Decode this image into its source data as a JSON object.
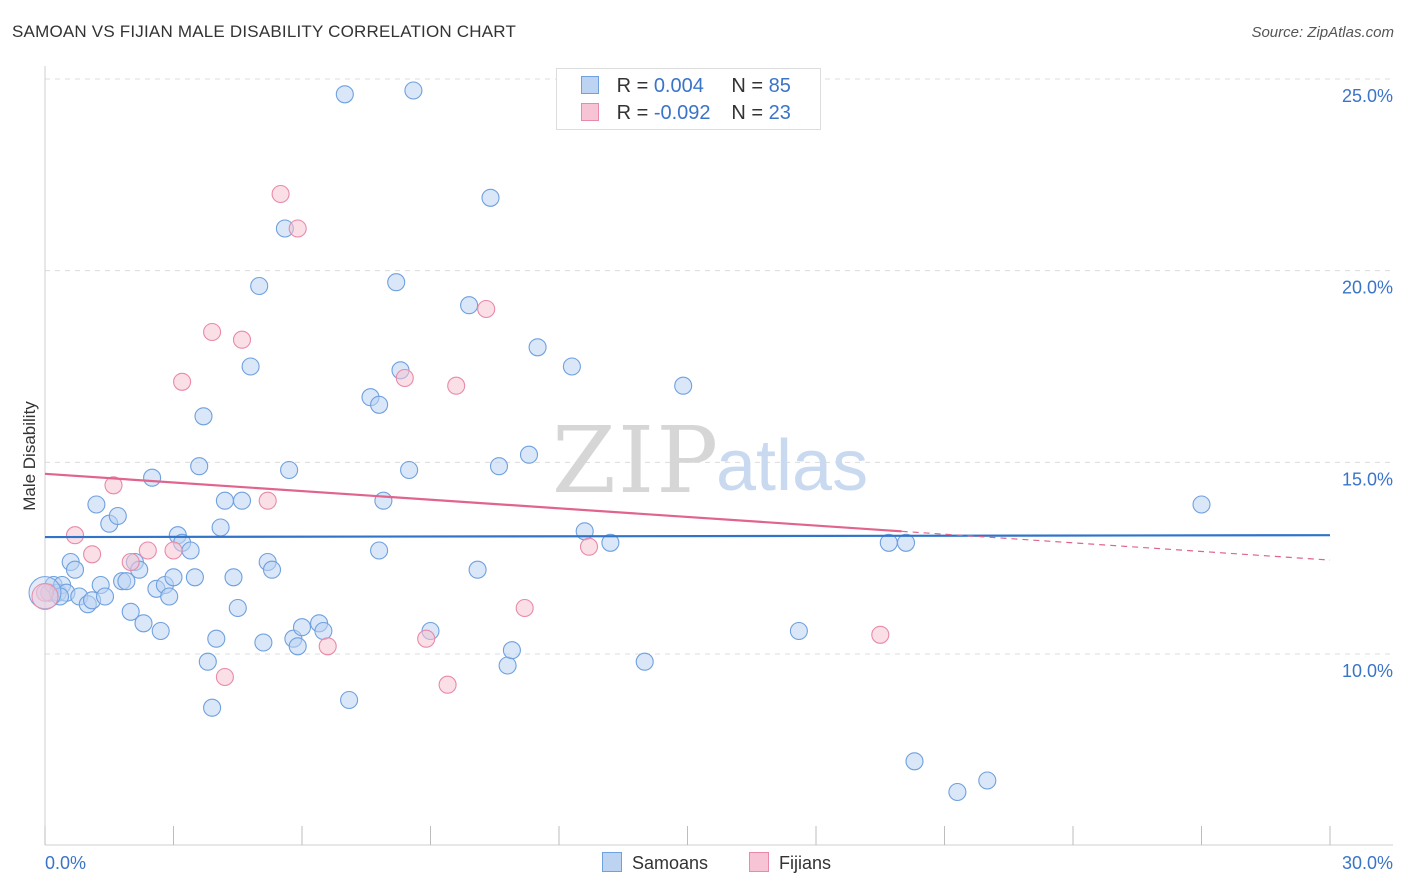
{
  "chart_data": {
    "type": "scatter",
    "title": "SAMOAN VS FIJIAN MALE DISABILITY CORRELATION CHART",
    "source": "Source: ZipAtlas.com",
    "xlabel": "",
    "ylabel": "Male Disability",
    "xlim": [
      0,
      30
    ],
    "ylim": [
      5.0,
      26.0
    ],
    "x_tick_labels": [
      "0.0%",
      "30.0%"
    ],
    "y_ticks": [
      10,
      15,
      20,
      25
    ],
    "y_tick_labels": [
      "10.0%",
      "15.0%",
      "20.0%",
      "25.0%"
    ],
    "watermark": {
      "zip": "ZIP",
      "atlas": "atlas"
    },
    "legend": {
      "rows": [
        {
          "r_label": "R = ",
          "r_value": "0.004",
          "n_label": "N = ",
          "n_value": "85"
        },
        {
          "r_label": "R = ",
          "r_value": "-0.092",
          "n_label": "N = ",
          "n_value": "23"
        }
      ]
    },
    "series": [
      {
        "name": "Samoans",
        "color": "#6fa0df",
        "fill": "#bcd3f2",
        "line_color": "#2f74c9",
        "trend": {
          "x": [
            0,
            30
          ],
          "y": [
            13.05,
            13.1
          ]
        },
        "points": [
          [
            0.1,
            11.6
          ],
          [
            0.2,
            11.8
          ],
          [
            0.3,
            11.6
          ],
          [
            0.4,
            11.8
          ],
          [
            0.5,
            11.6
          ],
          [
            0.6,
            12.4
          ],
          [
            0.7,
            12.2
          ],
          [
            0.8,
            11.5
          ],
          [
            1.0,
            11.3
          ],
          [
            1.1,
            11.4
          ],
          [
            1.2,
            13.9
          ],
          [
            1.3,
            11.8
          ],
          [
            1.4,
            11.5
          ],
          [
            1.5,
            13.4
          ],
          [
            1.7,
            13.6
          ],
          [
            1.8,
            11.9
          ],
          [
            1.9,
            11.9
          ],
          [
            2.0,
            11.1
          ],
          [
            2.1,
            12.4
          ],
          [
            2.2,
            12.2
          ],
          [
            2.3,
            10.8
          ],
          [
            2.5,
            14.6
          ],
          [
            2.6,
            11.7
          ],
          [
            2.7,
            10.6
          ],
          [
            2.8,
            11.8
          ],
          [
            2.9,
            11.5
          ],
          [
            3.0,
            12.0
          ],
          [
            3.1,
            13.1
          ],
          [
            3.2,
            12.9
          ],
          [
            3.4,
            12.7
          ],
          [
            3.5,
            12.0
          ],
          [
            3.6,
            14.9
          ],
          [
            3.7,
            16.2
          ],
          [
            3.8,
            9.8
          ],
          [
            3.9,
            8.6
          ],
          [
            4.0,
            10.4
          ],
          [
            4.1,
            13.3
          ],
          [
            4.2,
            14.0
          ],
          [
            4.4,
            12.0
          ],
          [
            4.5,
            11.2
          ],
          [
            4.6,
            14.0
          ],
          [
            4.8,
            17.5
          ],
          [
            5.0,
            19.6
          ],
          [
            5.1,
            10.3
          ],
          [
            5.2,
            12.4
          ],
          [
            5.3,
            12.2
          ],
          [
            5.7,
            14.8
          ],
          [
            5.8,
            10.4
          ],
          [
            5.9,
            10.2
          ],
          [
            5.6,
            21.1
          ],
          [
            6.0,
            10.7
          ],
          [
            6.4,
            10.8
          ],
          [
            6.5,
            10.6
          ],
          [
            7.0,
            24.6
          ],
          [
            7.1,
            8.8
          ],
          [
            7.6,
            16.7
          ],
          [
            7.8,
            16.5
          ],
          [
            7.8,
            12.7
          ],
          [
            7.9,
            14.0
          ],
          [
            8.2,
            19.7
          ],
          [
            8.3,
            17.4
          ],
          [
            8.5,
            14.8
          ],
          [
            8.6,
            24.7
          ],
          [
            9.0,
            10.6
          ],
          [
            9.9,
            19.1
          ],
          [
            10.1,
            12.2
          ],
          [
            10.4,
            21.9
          ],
          [
            10.6,
            14.9
          ],
          [
            10.8,
            9.7
          ],
          [
            10.9,
            10.1
          ],
          [
            11.3,
            15.2
          ],
          [
            11.5,
            18.0
          ],
          [
            12.3,
            17.5
          ],
          [
            12.6,
            13.2
          ],
          [
            13.2,
            12.9
          ],
          [
            14.0,
            9.8
          ],
          [
            14.9,
            17.0
          ],
          [
            17.6,
            10.6
          ],
          [
            19.7,
            12.9
          ],
          [
            20.1,
            12.9
          ],
          [
            20.3,
            7.2
          ],
          [
            21.3,
            6.4
          ],
          [
            22.0,
            6.7
          ],
          [
            27.0,
            13.9
          ],
          [
            0.35,
            11.5
          ]
        ]
      },
      {
        "name": "Fijians",
        "color": "#e98aa8",
        "fill": "#f6c4d4",
        "line_color": "#e0648c",
        "trend": {
          "x": [
            0,
            20
          ],
          "y": [
            14.7,
            13.2
          ]
        },
        "trend_dash": {
          "x": [
            20,
            30
          ],
          "y": [
            13.2,
            12.45
          ]
        },
        "points": [
          [
            0.0,
            11.6
          ],
          [
            0.7,
            13.1
          ],
          [
            1.1,
            12.6
          ],
          [
            1.6,
            14.4
          ],
          [
            2.0,
            12.4
          ],
          [
            2.4,
            12.7
          ],
          [
            3.0,
            12.7
          ],
          [
            3.2,
            17.1
          ],
          [
            3.9,
            18.4
          ],
          [
            4.2,
            9.4
          ],
          [
            4.6,
            18.2
          ],
          [
            5.2,
            14.0
          ],
          [
            5.5,
            22.0
          ],
          [
            5.9,
            21.1
          ],
          [
            6.6,
            10.2
          ],
          [
            8.4,
            17.2
          ],
          [
            8.9,
            10.4
          ],
          [
            9.4,
            9.2
          ],
          [
            9.6,
            17.0
          ],
          [
            10.3,
            19.0
          ],
          [
            11.2,
            11.2
          ],
          [
            12.7,
            12.8
          ],
          [
            19.5,
            10.5
          ]
        ]
      }
    ]
  }
}
